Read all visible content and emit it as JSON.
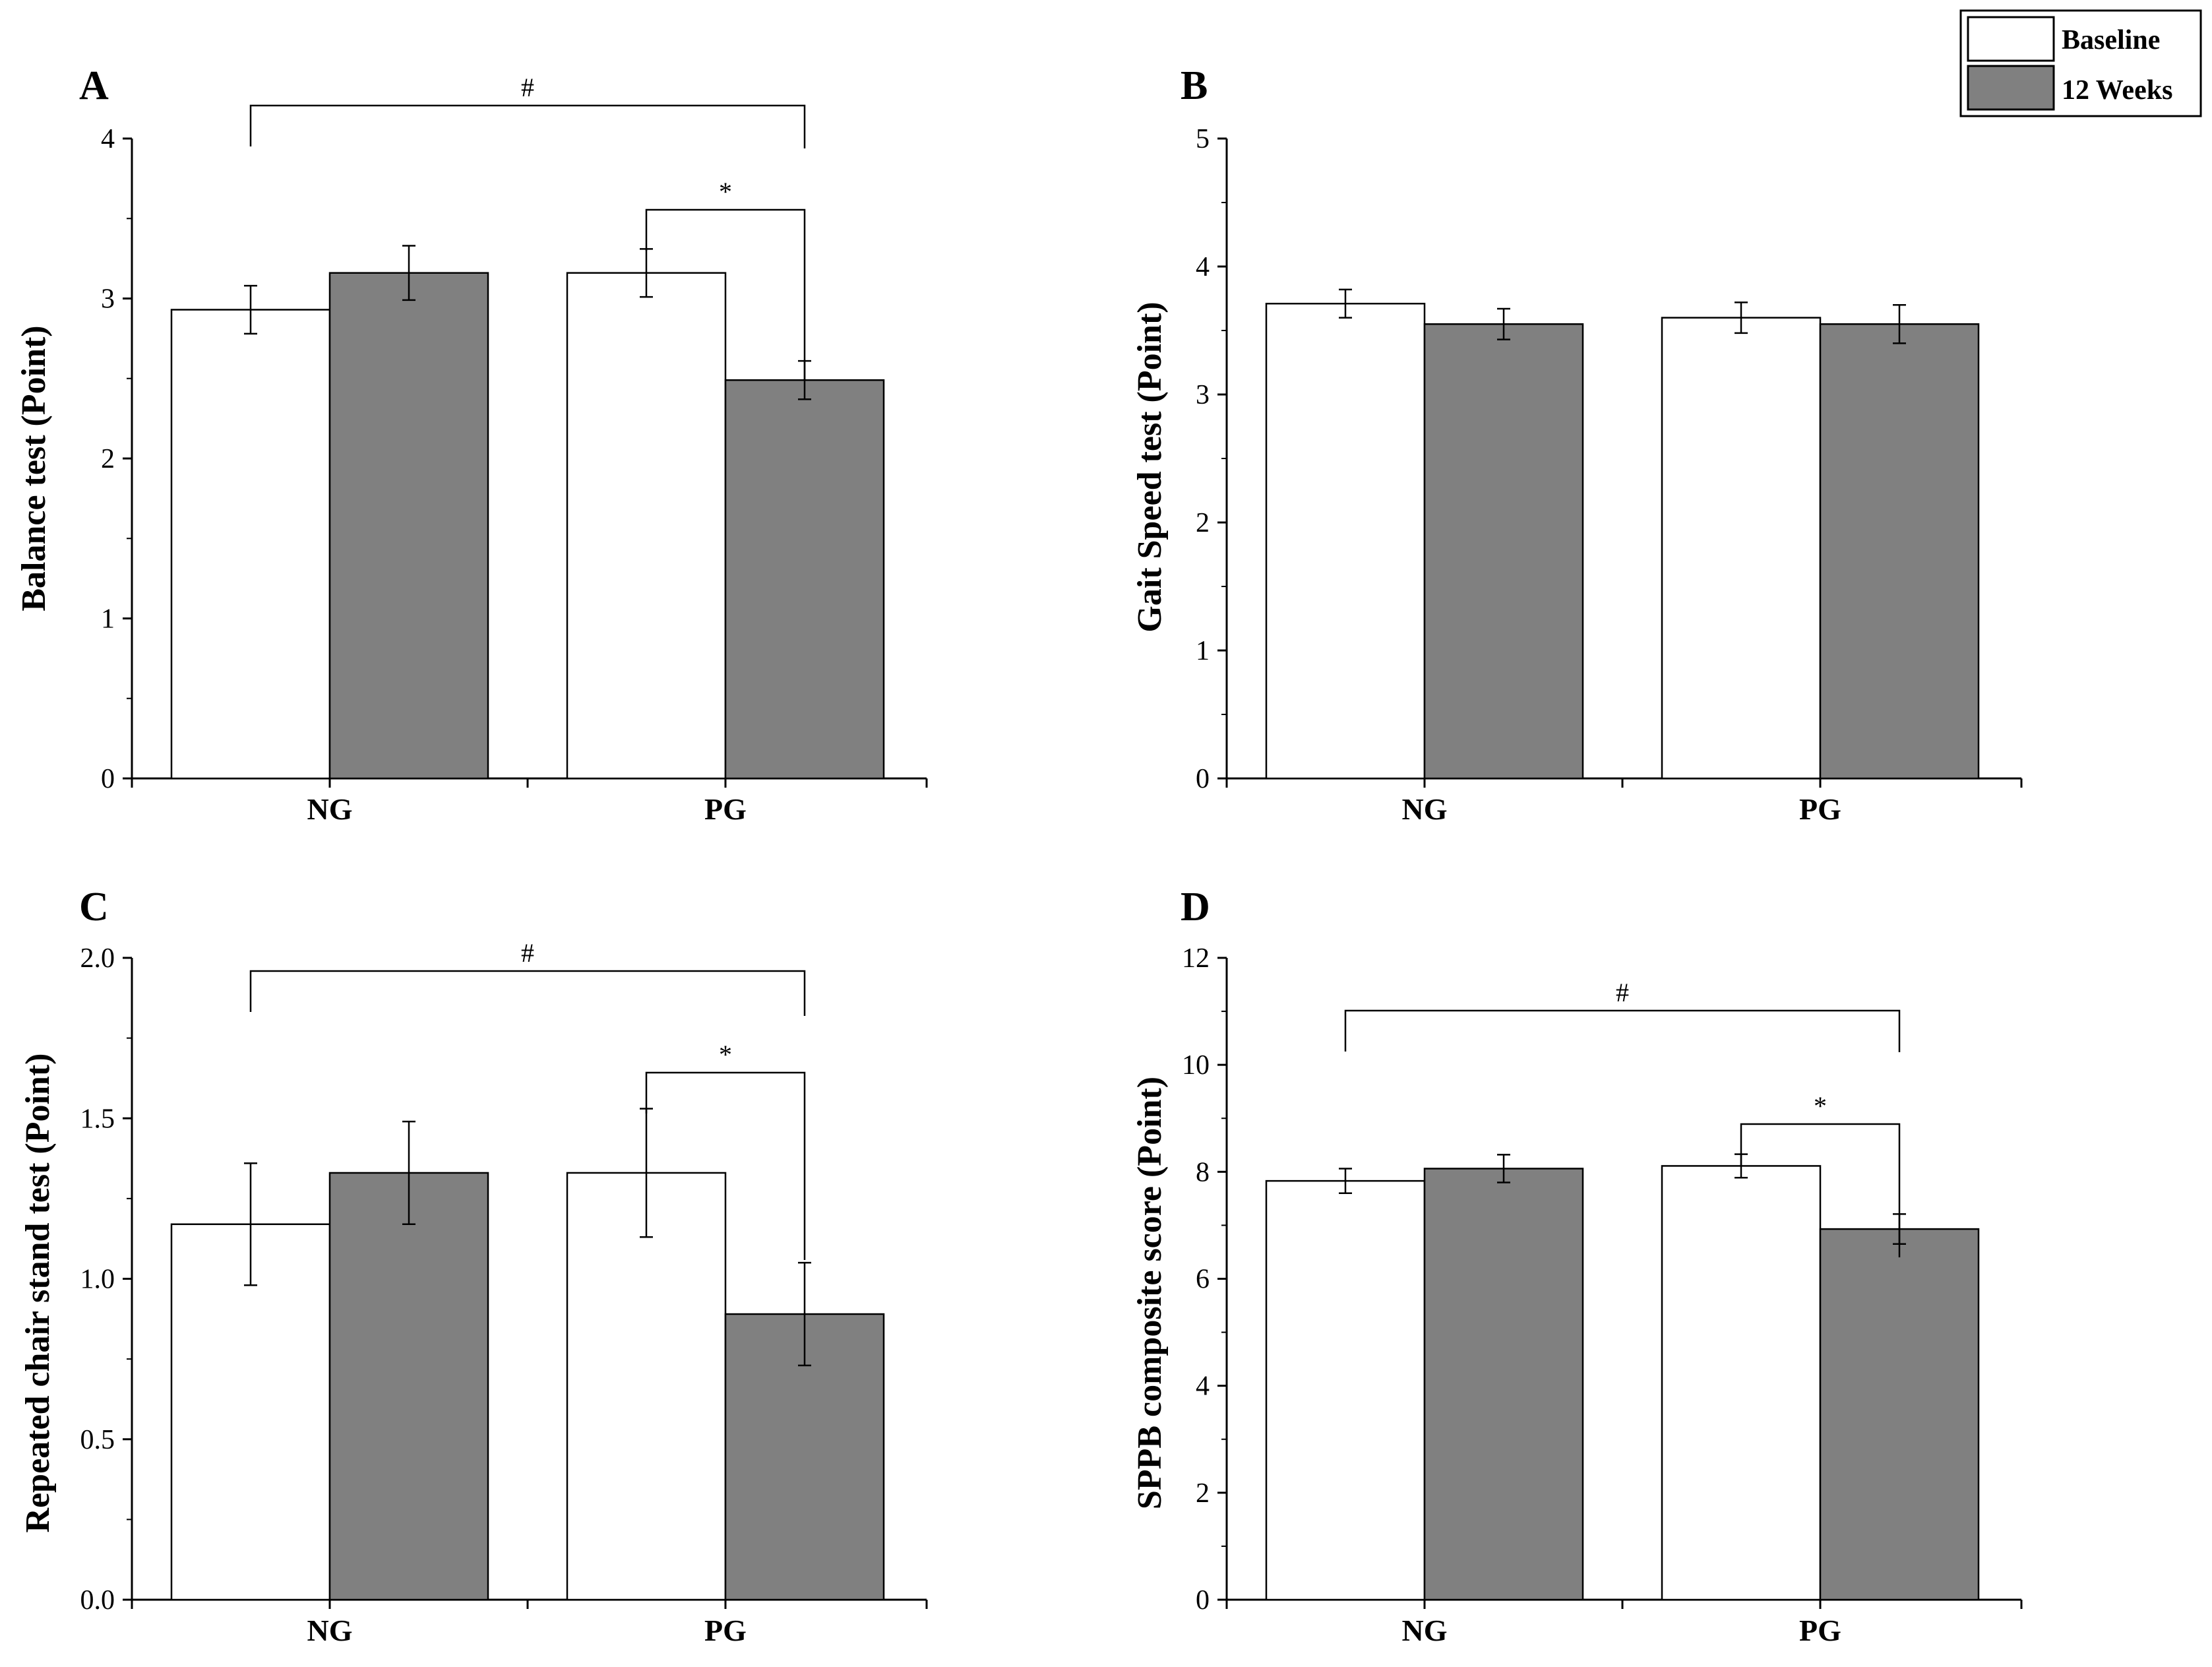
{
  "legend": {
    "items": [
      {
        "label": "Baseline",
        "color": "#ffffff"
      },
      {
        "label": "12 Weeks",
        "color": "#808080"
      }
    ]
  },
  "chart_data": [
    {
      "panel": "A",
      "type": "bar",
      "ylabel": "Balance test (Point)",
      "categories": [
        "NG",
        "PG"
      ],
      "ylim": [
        0,
        4
      ],
      "yticks": [
        "0",
        "1",
        "2",
        "3",
        "4"
      ],
      "series": [
        {
          "name": "Baseline",
          "values": [
            2.93,
            3.16
          ],
          "errors": [
            0.15,
            0.15
          ]
        },
        {
          "name": "12 Weeks",
          "values": [
            3.16,
            2.49
          ],
          "errors": [
            0.17,
            0.12
          ]
        }
      ],
      "annotations": [
        {
          "symbol": "#",
          "from": "NG Baseline",
          "to": "PG 12 Weeks"
        },
        {
          "symbol": "*",
          "from": "PG Baseline",
          "to": "PG 12 Weeks"
        }
      ]
    },
    {
      "panel": "B",
      "type": "bar",
      "ylabel": "Gait Speed test (Point)",
      "categories": [
        "NG",
        "PG"
      ],
      "ylim": [
        0,
        5
      ],
      "yticks": [
        "0",
        "1",
        "2",
        "3",
        "4",
        "5"
      ],
      "series": [
        {
          "name": "Baseline",
          "values": [
            3.71,
            3.6
          ],
          "errors": [
            0.11,
            0.12
          ]
        },
        {
          "name": "12 Weeks",
          "values": [
            3.55,
            3.55
          ],
          "errors": [
            0.12,
            0.15
          ]
        }
      ],
      "annotations": []
    },
    {
      "panel": "C",
      "type": "bar",
      "ylabel": "Repeated chair stand test (Point)",
      "categories": [
        "NG",
        "PG"
      ],
      "ylim": [
        0,
        2
      ],
      "yticks": [
        "0.0",
        "0.5",
        "1.0",
        "1.5",
        "2.0"
      ],
      "series": [
        {
          "name": "Baseline",
          "values": [
            1.17,
            1.33
          ],
          "errors": [
            0.19,
            0.2
          ]
        },
        {
          "name": "12 Weeks",
          "values": [
            1.33,
            0.89
          ],
          "errors": [
            0.16,
            0.16
          ]
        }
      ],
      "annotations": [
        {
          "symbol": "#",
          "from": "NG Baseline",
          "to": "PG 12 Weeks"
        },
        {
          "symbol": "*",
          "from": "PG Baseline",
          "to": "PG 12 Weeks"
        }
      ]
    },
    {
      "panel": "D",
      "type": "bar",
      "ylabel": "SPPB composite score (Point)",
      "categories": [
        "NG",
        "PG"
      ],
      "ylim": [
        0,
        12
      ],
      "yticks": [
        "0",
        "2",
        "4",
        "6",
        "8",
        "10",
        "12"
      ],
      "series": [
        {
          "name": "Baseline",
          "values": [
            7.83,
            8.11
          ],
          "errors": [
            0.23,
            0.22
          ]
        },
        {
          "name": "12 Weeks",
          "values": [
            8.06,
            6.93
          ],
          "errors": [
            0.26,
            0.28
          ]
        }
      ],
      "annotations": [
        {
          "symbol": "#",
          "from": "NG Baseline",
          "to": "PG 12 Weeks"
        },
        {
          "symbol": "*",
          "from": "PG Baseline",
          "to": "PG 12 Weeks"
        }
      ]
    }
  ]
}
